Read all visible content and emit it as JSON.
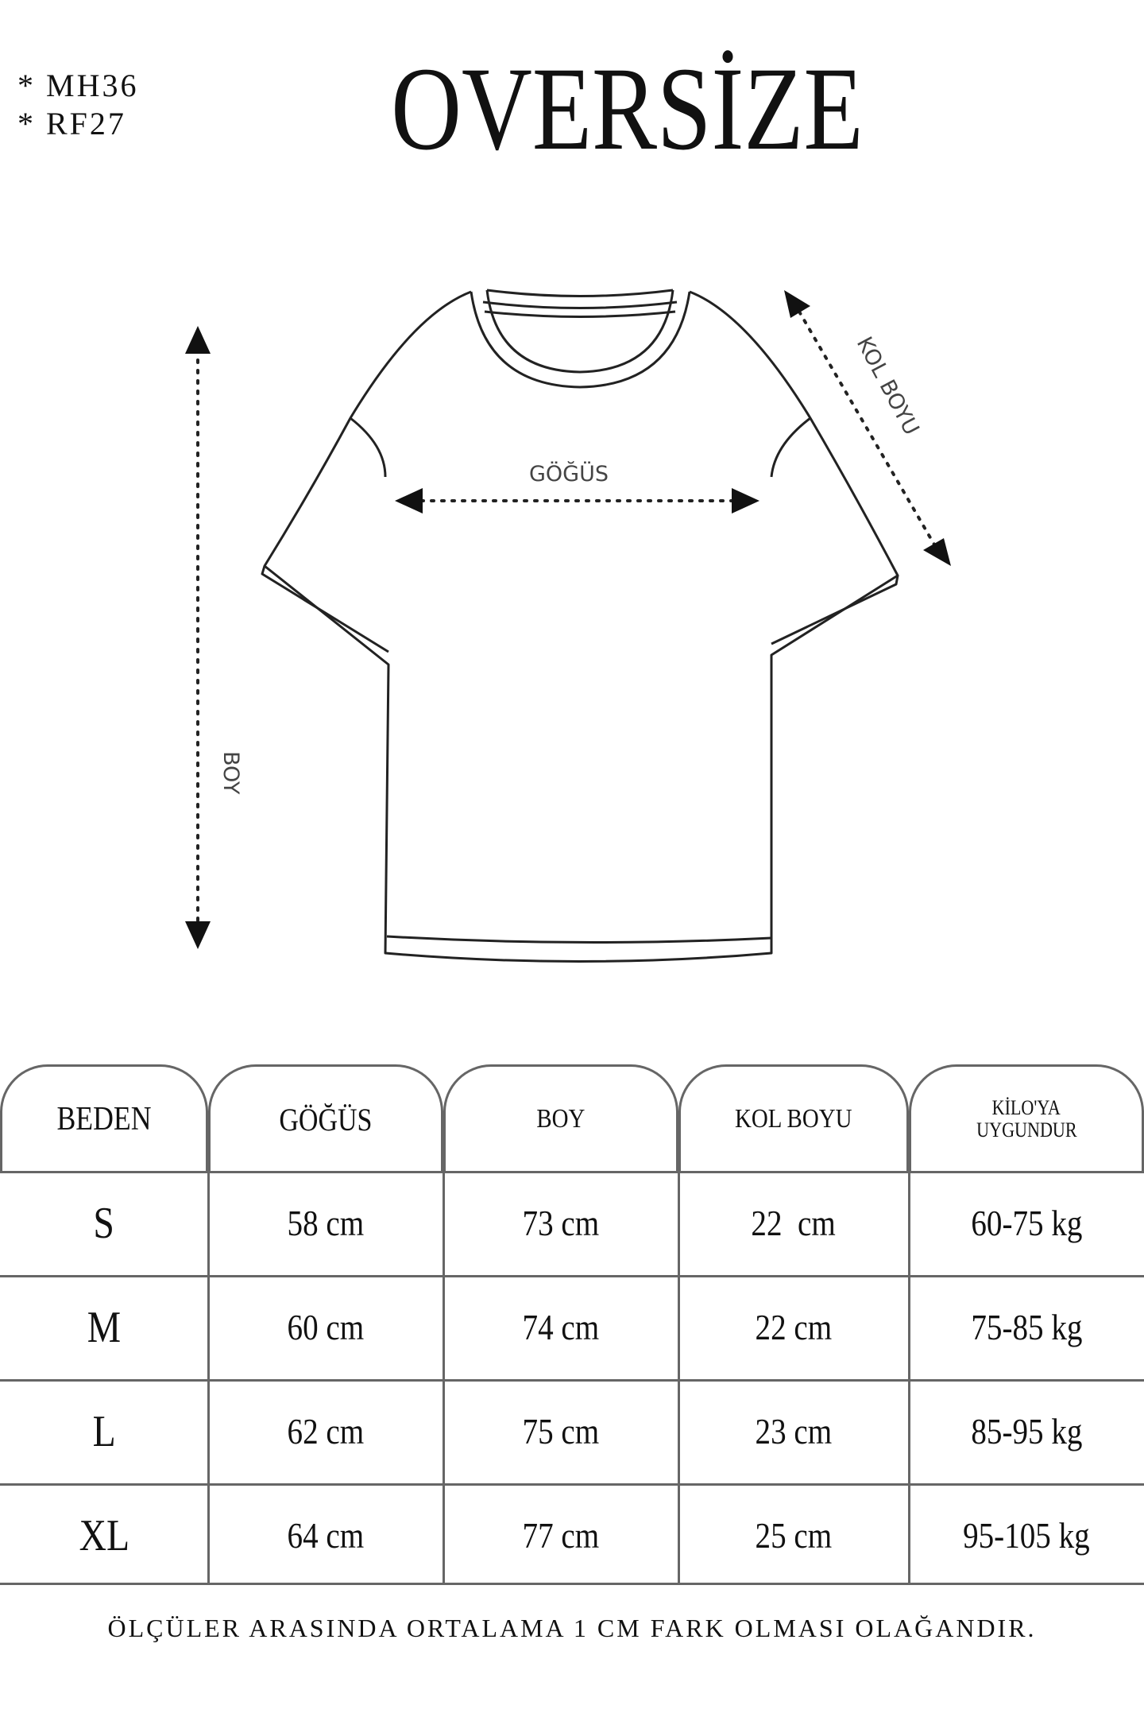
{
  "codes": [
    "* MH36",
    "* RF27"
  ],
  "title": "OVERSİZE",
  "diagram": {
    "chest_label": "GÖĞÜS",
    "length_label": "BOY",
    "sleeve_label": "KOL BOYU"
  },
  "table": {
    "headers": [
      "BEDEN",
      "GÖĞÜS",
      "BOY",
      "KOL BOYU",
      "KİLO'YA UYGUNDUR"
    ],
    "header_kilo_lines": [
      "KİLO'YA",
      "UYGUNDUR"
    ],
    "rows": [
      [
        "S",
        "58 cm",
        "73 cm",
        "22  cm",
        "60-75 kg"
      ],
      [
        "M",
        "60 cm",
        "74 cm",
        "22 cm",
        "75-85 kg"
      ],
      [
        "L",
        "62 cm",
        "75 cm",
        "23 cm",
        "85-95 kg"
      ],
      [
        "XL",
        "64 cm",
        "77 cm",
        "25 cm",
        "95-105 kg"
      ]
    ]
  },
  "footer": "ÖLÇÜLER ARASINDA ORTALAMA 1 CM FARK OLMASI OLAĞANDIR."
}
